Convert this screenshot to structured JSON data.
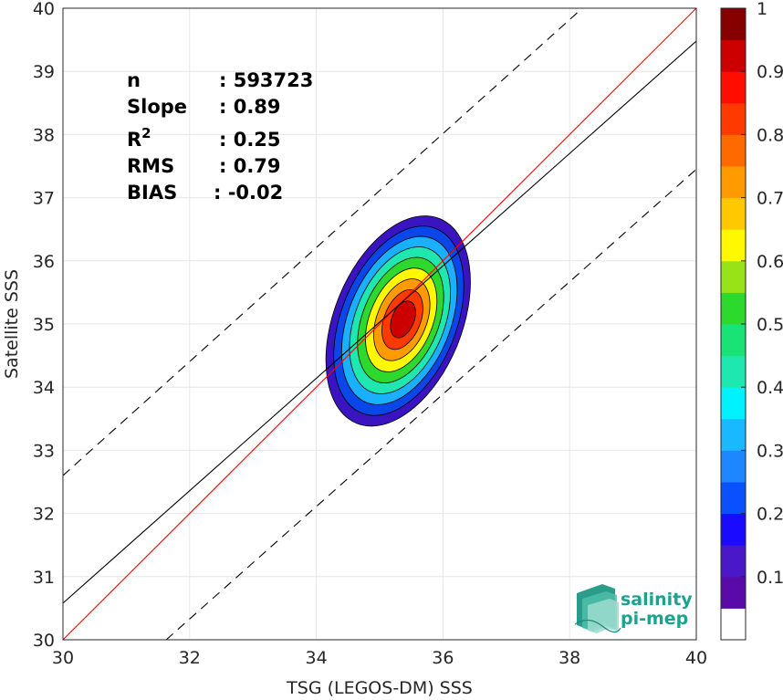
{
  "chart_data": {
    "type": "scatter",
    "subtype": "density-contour",
    "xlabel": "TSG (LEGOS-DM) SSS",
    "ylabel": "Satellite SSS",
    "xlim": [
      30,
      40
    ],
    "ylim": [
      30,
      40
    ],
    "xticks": [
      "30",
      "32",
      "34",
      "36",
      "38",
      "40"
    ],
    "yticks": [
      "30",
      "31",
      "32",
      "33",
      "34",
      "35",
      "36",
      "37",
      "38",
      "39",
      "40"
    ],
    "grid": true,
    "stats": [
      {
        "label": "n",
        "value": ": 593723"
      },
      {
        "label": "Slope",
        "value": ": 0.89"
      },
      {
        "label": "R",
        "sup": "2",
        "value": ": 0.25"
      },
      {
        "label": "RMS",
        "value": ": 0.79"
      },
      {
        "label": "BIAS",
        "value": ": -0.02"
      }
    ],
    "lines": [
      {
        "kind": "identity",
        "color": "#ff0000",
        "x": [
          30,
          40
        ],
        "y": [
          30,
          40
        ]
      },
      {
        "kind": "regression",
        "color": "#000000",
        "x": [
          30,
          40
        ],
        "y": [
          30.58,
          39.48
        ]
      },
      {
        "kind": "upper-bound",
        "color": "#000000",
        "dashed": true,
        "x": [
          30,
          38.2
        ],
        "y": [
          32.6,
          40
        ]
      },
      {
        "kind": "lower-bound",
        "color": "#000000",
        "dashed": true,
        "x": [
          31.63,
          40
        ],
        "y": [
          30,
          37.45
        ]
      }
    ],
    "density_peak": {
      "x": 35.35,
      "y": 35.25
    },
    "contour_levels": [
      0.05,
      0.2,
      0.3,
      0.4,
      0.5,
      0.6,
      0.7,
      0.8,
      0.9
    ],
    "colorbar": {
      "min": 0,
      "max": 1,
      "ticks": [
        "0.1",
        "0.2",
        "0.3",
        "0.4",
        "0.5",
        "0.6",
        "0.7",
        "0.8",
        "0.9",
        "1"
      ],
      "colors": [
        "#ffffff",
        "#5a0aa8",
        "#4a18c8",
        "#1a0aff",
        "#0a50ff",
        "#1e86ff",
        "#1ab8ff",
        "#00f2ff",
        "#1ee8b0",
        "#19e374",
        "#2cd92c",
        "#98e218",
        "#fff800",
        "#ffc800",
        "#ff9a00",
        "#ff6a00",
        "#ff3a00",
        "#ff0e00",
        "#cc0000",
        "#860000"
      ]
    },
    "contour_colors": [
      "#3a14c0",
      "#0a46e8",
      "#1ab0ff",
      "#1ee8b0",
      "#2cd92c",
      "#fff800",
      "#ff9a00",
      "#ff3a00",
      "#cc0000"
    ]
  },
  "logo": {
    "line1": "salinity",
    "line2": "pi-mep"
  }
}
